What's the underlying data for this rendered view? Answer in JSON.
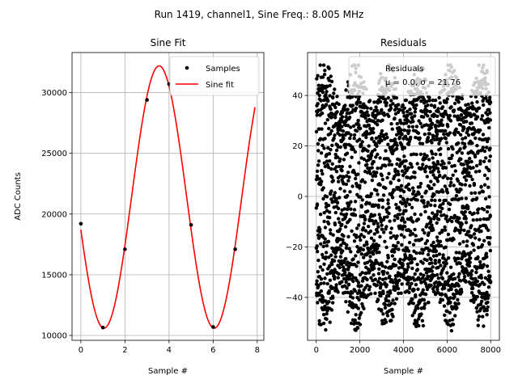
{
  "figure_title": "Run 1419, channel1, Sine Freq.: 8.005 MHz",
  "chart_data": [
    {
      "type": "scatter",
      "title": "Sine Fit",
      "xlabel": "Sample #",
      "ylabel": "ADC Counts",
      "xlim": [
        -0.4,
        8.3
      ],
      "ylim": [
        9600,
        33300
      ],
      "xticks": [
        0,
        2,
        4,
        6,
        8
      ],
      "yticks": [
        10000,
        15000,
        20000,
        25000,
        30000
      ],
      "grid": true,
      "legend_placement": "top-right",
      "series": [
        {
          "name": "Samples",
          "kind": "scatter",
          "color": "#000000",
          "x": [
            0,
            1,
            2,
            3,
            4,
            5,
            6,
            7
          ],
          "y": [
            19200,
            10650,
            17100,
            29400,
            30700,
            19100,
            10700,
            17100
          ]
        },
        {
          "name": "Sine fit",
          "kind": "line",
          "color": "#ff0000",
          "function": {
            "offset": 21400,
            "amplitude": 10800,
            "period": 5.0,
            "peak_x": 3.55
          },
          "x_range": [
            0,
            7.9
          ]
        }
      ]
    },
    {
      "type": "scatter",
      "title": "Residuals",
      "xlabel": "Sample #",
      "ylabel": "",
      "xlim": [
        -400,
        8400
      ],
      "ylim": [
        -57,
        57
      ],
      "xticks": [
        0,
        2000,
        4000,
        6000,
        8000
      ],
      "yticks": [
        -40,
        -20,
        0,
        20,
        40
      ],
      "grid": true,
      "legend_placement": "top-right",
      "legend": {
        "name": "Residuals",
        "stats": "μ = 0.0, σ = 21.76"
      },
      "series": [
        {
          "name": "Residuals",
          "kind": "scatter",
          "color": "#000000",
          "n_points": 8000,
          "x_range": [
            0,
            8000
          ],
          "y_range": [
            -54,
            52
          ]
        }
      ]
    }
  ]
}
